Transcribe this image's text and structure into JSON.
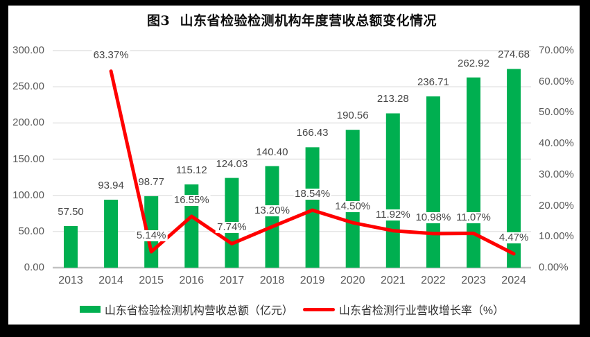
{
  "title": "图3  山东省检验检测机构年度营收总额变化情况",
  "colors": {
    "bar": "#00AF50",
    "line": "#FF0000",
    "grid": "#E2E2E2",
    "axis_line": "#C2C2C2",
    "axis_text": "#595959",
    "label_text": "#464646",
    "background": "#000000",
    "chart_background": "#FFFFFF"
  },
  "legend": [
    {
      "type": "bar",
      "label": "山东省检验检测机构营收总额（亿元）",
      "color": "#00AF50"
    },
    {
      "type": "line",
      "label": "山东省检测行业营收增长率（%）",
      "color": "#FF0000"
    }
  ],
  "chart_data": {
    "type": "bar",
    "title": "图3  山东省检验检测机构年度营收总额变化情况",
    "categories": [
      "2013",
      "2014",
      "2015",
      "2016",
      "2017",
      "2018",
      "2019",
      "2020",
      "2021",
      "2022",
      "2023",
      "2024"
    ],
    "series": [
      {
        "name": "山东省检验检测机构营收总额（亿元）",
        "type": "bar",
        "axis": "left",
        "values": [
          57.5,
          93.94,
          98.77,
          115.12,
          124.03,
          140.4,
          166.43,
          190.56,
          213.28,
          236.71,
          262.92,
          274.68
        ],
        "data_labels": [
          "57.50",
          "93.94",
          "98.77",
          "115.12",
          "124.03",
          "140.40",
          "166.43",
          "190.56",
          "213.28",
          "236.71",
          "262.92",
          "274.68"
        ]
      },
      {
        "name": "山东省检测行业营收增长率（%）",
        "type": "line",
        "axis": "right",
        "values": [
          null,
          63.37,
          5.14,
          16.55,
          7.74,
          13.2,
          18.54,
          14.5,
          11.92,
          10.98,
          11.07,
          4.47
        ],
        "data_labels": [
          null,
          "63.37%",
          "5.14%",
          "16.55%",
          "7.74%",
          "13.20%",
          "18.54%",
          "14.50%",
          "11.92%",
          "10.98%",
          "11.07%",
          "4.47%"
        ]
      }
    ],
    "left_axis": {
      "min": 0,
      "max": 300,
      "step": 50,
      "ticks": [
        "300.00",
        "250.00",
        "200.00",
        "150.00",
        "100.00",
        "50.00",
        "0.00"
      ]
    },
    "right_axis": {
      "min": 0,
      "max": 70,
      "step": 10,
      "ticks": [
        "70.00%",
        "60.00%",
        "50.00%",
        "40.00%",
        "30.00%",
        "20.00%",
        "10.00%",
        "0.00%"
      ]
    },
    "grid": true,
    "legend_position": "bottom"
  }
}
